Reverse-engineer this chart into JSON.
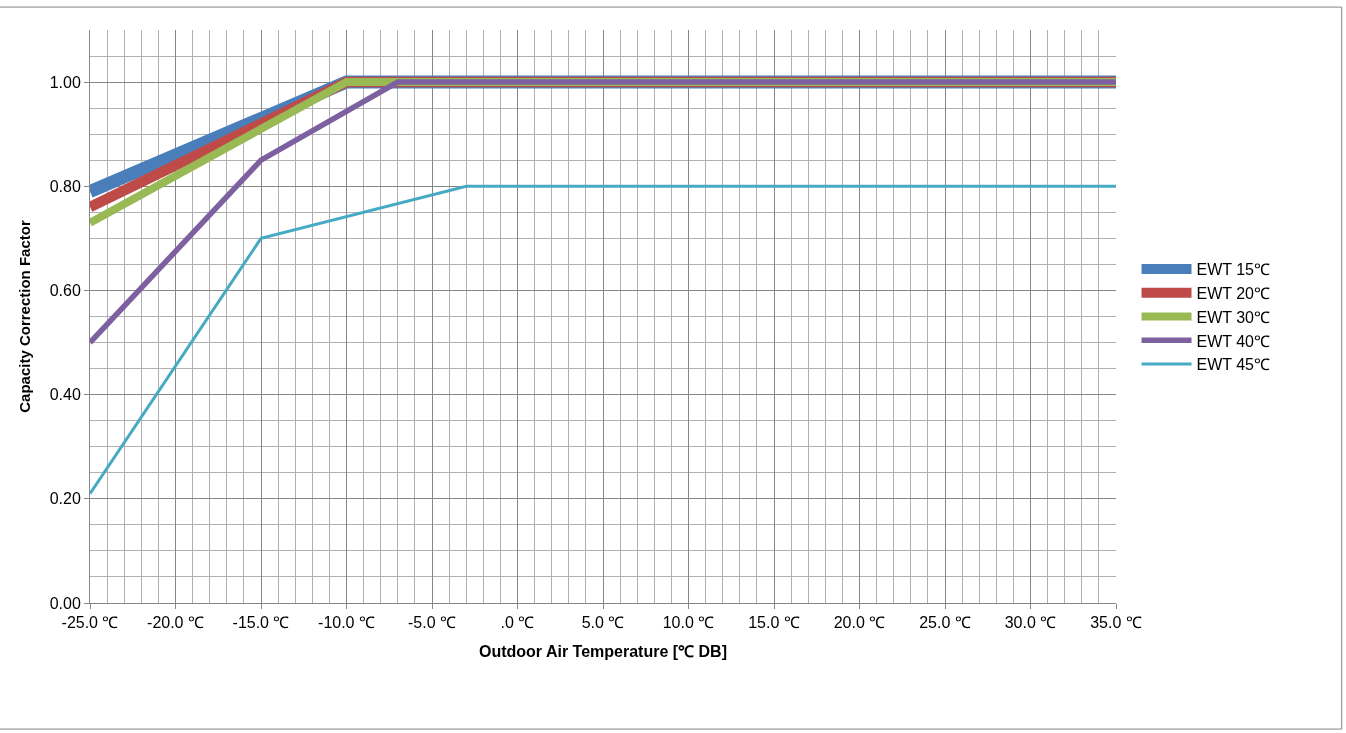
{
  "chart_data": {
    "type": "line",
    "xlabel": "Outdoor Air Temperature [℃ DB]",
    "ylabel": "Capacity Correction Factor",
    "xlim": [
      -25,
      35
    ],
    "xticks": [
      {
        "value": -25,
        "label": "-25.0 ℃"
      },
      {
        "value": -20,
        "label": "-20.0 ℃"
      },
      {
        "value": -15,
        "label": "-15.0 ℃"
      },
      {
        "value": -10,
        "label": "-10.0 ℃"
      },
      {
        "value": -5,
        "label": "-5.0 ℃"
      },
      {
        "value": 0,
        "label": ".0 ℃"
      },
      {
        "value": 5,
        "label": "5.0 ℃"
      },
      {
        "value": 10,
        "label": "10.0 ℃"
      },
      {
        "value": 15,
        "label": "15.0 ℃"
      },
      {
        "value": 20,
        "label": "20.0 ℃"
      },
      {
        "value": 25,
        "label": "25.0 ℃"
      },
      {
        "value": 30,
        "label": "30.0 ℃"
      },
      {
        "value": 35,
        "label": "35.0 ℃"
      }
    ],
    "ylim": [
      0,
      1.1
    ],
    "yticks": [
      {
        "value": 0,
        "label": "0.00"
      },
      {
        "value": 0.2,
        "label": "0.20"
      },
      {
        "value": 0.4,
        "label": "0.40"
      },
      {
        "value": 0.6,
        "label": "0.60"
      },
      {
        "value": 0.8,
        "label": "0.80"
      },
      {
        "value": 1.0,
        "label": "1.00"
      }
    ],
    "grid": true,
    "legend": "right",
    "marker": "none",
    "line_style": "solid",
    "series": [
      {
        "name": "EWT 15℃",
        "color": "#4a7ebb",
        "x": [
          -25,
          -10,
          35
        ],
        "values": [
          0.79,
          1.0,
          1.0
        ]
      },
      {
        "name": "EWT 20℃",
        "color": "#be4b48",
        "x": [
          -25,
          -10,
          35
        ],
        "values": [
          0.76,
          1.0,
          1.0
        ]
      },
      {
        "name": "EWT 30℃",
        "color": "#98b954",
        "x": [
          -25,
          -10,
          -7,
          35
        ],
        "values": [
          0.73,
          1.0,
          1.0,
          1.0
        ]
      },
      {
        "name": "EWT 40℃",
        "color": "#7d60a0",
        "x": [
          -25,
          -15,
          -7,
          35
        ],
        "values": [
          0.5,
          0.85,
          1.0,
          1.0
        ]
      },
      {
        "name": "EWT 45℃",
        "color": "#46aac5",
        "x": [
          -25,
          -15,
          -3,
          35
        ],
        "values": [
          0.21,
          0.7,
          0.8,
          0.8
        ]
      }
    ]
  }
}
